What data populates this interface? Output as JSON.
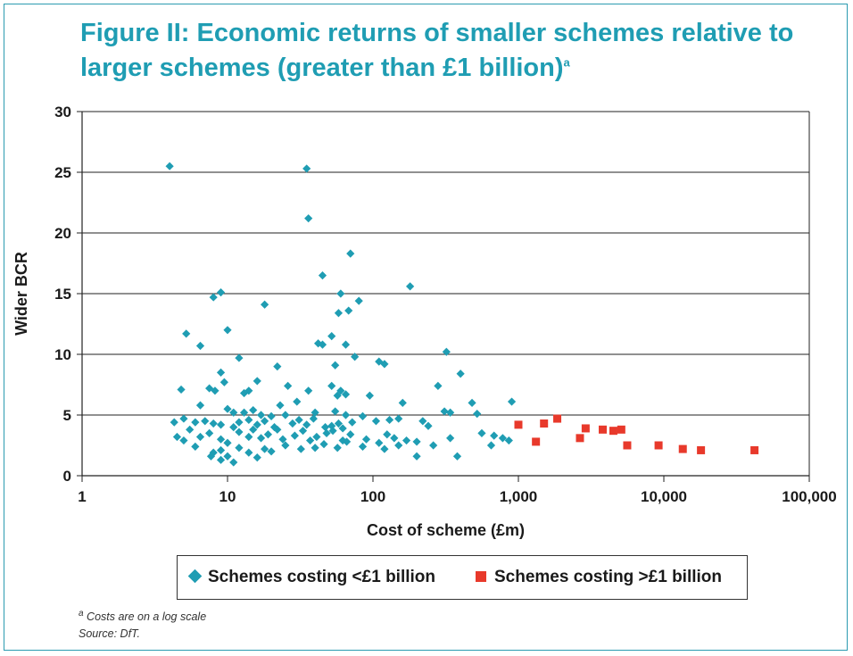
{
  "title_line1": "Figure II: Economic returns of smaller schemes relative to",
  "title_line2": "larger schemes (greater than £1 billion)",
  "title_sup": "a",
  "footnote_marker": "a",
  "footnote_text": "Costs are on a log scale",
  "source_text": "Source: DfT.",
  "colors": {
    "accent": "#1f9db3",
    "small": "#1f9db3",
    "large": "#e8392b"
  },
  "chart_data": {
    "type": "scatter",
    "xlabel": "Cost of scheme (£m)",
    "ylabel": "Wider BCR",
    "x_scale": "log",
    "xlim": [
      1,
      100000
    ],
    "ylim": [
      0,
      30
    ],
    "x_ticks": [
      1,
      10,
      100,
      1000,
      10000,
      100000
    ],
    "x_tick_labels": [
      "1",
      "10",
      "100",
      "1,000",
      "10,000",
      "100,000"
    ],
    "y_ticks": [
      0,
      5,
      10,
      15,
      20,
      25,
      30
    ],
    "y_tick_labels": [
      "0",
      "5",
      "10",
      "15",
      "20",
      "25",
      "30"
    ],
    "grid": "horizontal",
    "legend_position": "bottom",
    "series": [
      {
        "name": "Schemes costing <£1 billion",
        "marker": "diamond",
        "points": [
          [
            4.0,
            25.5
          ],
          [
            35,
            25.3
          ],
          [
            36,
            21.2
          ],
          [
            70,
            18.3
          ],
          [
            45,
            16.5
          ],
          [
            180,
            15.6
          ],
          [
            9,
            15.1
          ],
          [
            60,
            15.0
          ],
          [
            8,
            14.7
          ],
          [
            18,
            14.1
          ],
          [
            80,
            14.4
          ],
          [
            68,
            13.6
          ],
          [
            58,
            13.4
          ],
          [
            5.2,
            11.7
          ],
          [
            10,
            12.0
          ],
          [
            52,
            11.5
          ],
          [
            42,
            10.9
          ],
          [
            45,
            10.8
          ],
          [
            6.5,
            10.7
          ],
          [
            65,
            10.8
          ],
          [
            320,
            10.2
          ],
          [
            12,
            9.7
          ],
          [
            55,
            9.1
          ],
          [
            22,
            9.0
          ],
          [
            75,
            9.8
          ],
          [
            110,
            9.4
          ],
          [
            120,
            9.2
          ],
          [
            400,
            8.4
          ],
          [
            9,
            8.5
          ],
          [
            9.5,
            7.7
          ],
          [
            16,
            7.8
          ],
          [
            7.5,
            7.2
          ],
          [
            4.8,
            7.1
          ],
          [
            14,
            7.0
          ],
          [
            26,
            7.4
          ],
          [
            280,
            7.4
          ],
          [
            8.2,
            7.0
          ],
          [
            13,
            6.8
          ],
          [
            36,
            7.0
          ],
          [
            52,
            7.4
          ],
          [
            60,
            7.0
          ],
          [
            30,
            6.1
          ],
          [
            57,
            6.6
          ],
          [
            65,
            6.7
          ],
          [
            95,
            6.6
          ],
          [
            480,
            6.0
          ],
          [
            160,
            6.0
          ],
          [
            900,
            6.1
          ],
          [
            6.5,
            5.8
          ],
          [
            23,
            5.8
          ],
          [
            10,
            5.5
          ],
          [
            11,
            5.2
          ],
          [
            13,
            5.2
          ],
          [
            15,
            5.4
          ],
          [
            17,
            5.0
          ],
          [
            20,
            4.9
          ],
          [
            25,
            5.0
          ],
          [
            40,
            5.2
          ],
          [
            55,
            5.3
          ],
          [
            65,
            5.0
          ],
          [
            85,
            4.9
          ],
          [
            310,
            5.3
          ],
          [
            340,
            5.2
          ],
          [
            520,
            5.1
          ],
          [
            4.3,
            4.4
          ],
          [
            5,
            4.7
          ],
          [
            6,
            4.4
          ],
          [
            7,
            4.5
          ],
          [
            8,
            4.3
          ],
          [
            9,
            4.2
          ],
          [
            11,
            4.0
          ],
          [
            12,
            4.4
          ],
          [
            14,
            4.6
          ],
          [
            16,
            4.2
          ],
          [
            18,
            4.5
          ],
          [
            21,
            4.0
          ],
          [
            28,
            4.3
          ],
          [
            31,
            4.6
          ],
          [
            35,
            4.2
          ],
          [
            39,
            4.7
          ],
          [
            47,
            4.0
          ],
          [
            52,
            4.1
          ],
          [
            58,
            4.3
          ],
          [
            62,
            3.9
          ],
          [
            72,
            4.4
          ],
          [
            105,
            4.5
          ],
          [
            130,
            4.6
          ],
          [
            150,
            4.7
          ],
          [
            220,
            4.5
          ],
          [
            240,
            4.1
          ],
          [
            4.5,
            3.2
          ],
          [
            5.5,
            3.8
          ],
          [
            6.5,
            3.2
          ],
          [
            7.5,
            3.5
          ],
          [
            9,
            3.0
          ],
          [
            10,
            2.7
          ],
          [
            12,
            3.6
          ],
          [
            14,
            3.2
          ],
          [
            15,
            3.8
          ],
          [
            17,
            3.1
          ],
          [
            19,
            3.4
          ],
          [
            22,
            3.8
          ],
          [
            24,
            3.0
          ],
          [
            29,
            3.3
          ],
          [
            33,
            3.7
          ],
          [
            37,
            2.9
          ],
          [
            41,
            3.2
          ],
          [
            48,
            3.5
          ],
          [
            53,
            3.7
          ],
          [
            62,
            2.9
          ],
          [
            70,
            3.4
          ],
          [
            90,
            3.0
          ],
          [
            110,
            2.7
          ],
          [
            125,
            3.4
          ],
          [
            140,
            3.1
          ],
          [
            170,
            2.9
          ],
          [
            200,
            2.8
          ],
          [
            260,
            2.5
          ],
          [
            340,
            3.1
          ],
          [
            560,
            3.5
          ],
          [
            680,
            3.3
          ],
          [
            780,
            3.1
          ],
          [
            860,
            2.9
          ],
          [
            5,
            2.9
          ],
          [
            6,
            2.4
          ],
          [
            8,
            1.9
          ],
          [
            9,
            2.1
          ],
          [
            10,
            1.6
          ],
          [
            12,
            2.3
          ],
          [
            14,
            1.9
          ],
          [
            16,
            1.5
          ],
          [
            18,
            2.2
          ],
          [
            20,
            2.0
          ],
          [
            25,
            2.5
          ],
          [
            32,
            2.2
          ],
          [
            40,
            2.3
          ],
          [
            46,
            2.6
          ],
          [
            57,
            2.3
          ],
          [
            66,
            2.8
          ],
          [
            85,
            2.4
          ],
          [
            120,
            2.2
          ],
          [
            150,
            2.5
          ],
          [
            200,
            1.6
          ],
          [
            380,
            1.6
          ],
          [
            650,
            2.5
          ],
          [
            9,
            1.3
          ],
          [
            11,
            1.1
          ],
          [
            7.7,
            1.6
          ]
        ]
      },
      {
        "name": "Schemes costing >£1 billion",
        "marker": "square",
        "points": [
          [
            1000,
            4.2
          ],
          [
            1320,
            2.8
          ],
          [
            1500,
            4.3
          ],
          [
            1850,
            4.7
          ],
          [
            2650,
            3.1
          ],
          [
            2900,
            3.9
          ],
          [
            3800,
            3.8
          ],
          [
            4500,
            3.7
          ],
          [
            5100,
            3.8
          ],
          [
            5600,
            2.5
          ],
          [
            9200,
            2.5
          ],
          [
            13500,
            2.2
          ],
          [
            18000,
            2.1
          ],
          [
            42000,
            2.1
          ]
        ]
      }
    ]
  }
}
